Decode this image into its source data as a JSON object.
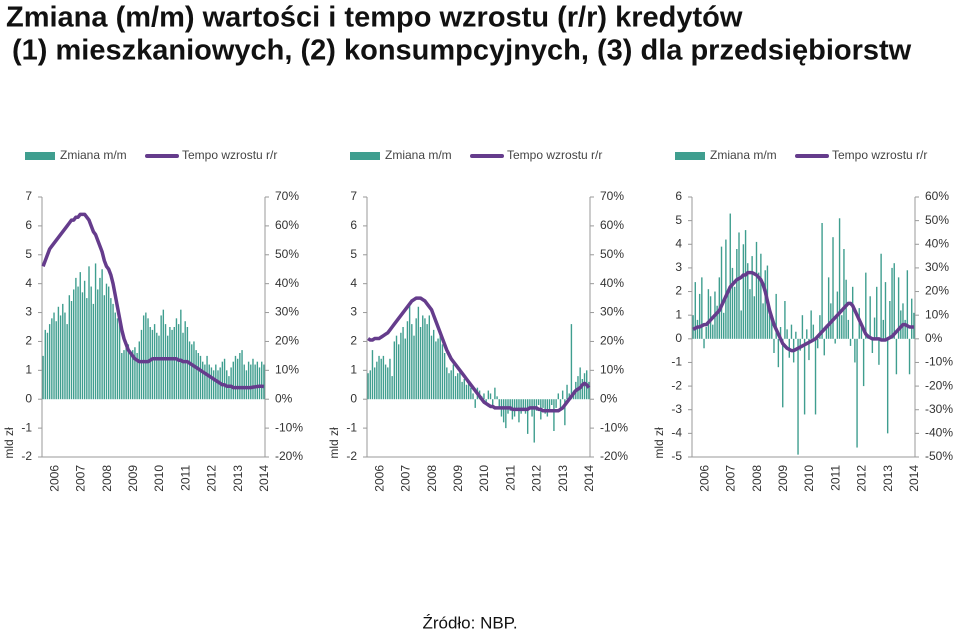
{
  "header": {
    "title": "Zmiana (m/m) wartości i tempo wzrostu (r/r) kredytów",
    "subtitle": "(1) mieszkaniowych, (2) konsumpcyjnych, (3) dla przedsiębiorstw"
  },
  "source": "Źródło: NBP.",
  "chart_data": [
    {
      "type": "combo",
      "ylabel": "mld zł",
      "categories": [
        "2006",
        null,
        null,
        null,
        null,
        null,
        null,
        null,
        null,
        null,
        null,
        null,
        "2007",
        null,
        null,
        null,
        null,
        null,
        null,
        null,
        null,
        null,
        null,
        null,
        "2008",
        null,
        null,
        null,
        null,
        null,
        null,
        null,
        null,
        null,
        null,
        null,
        "2009",
        null,
        null,
        null,
        null,
        null,
        null,
        null,
        null,
        null,
        null,
        null,
        "2010",
        null,
        null,
        null,
        null,
        null,
        null,
        null,
        null,
        null,
        null,
        null,
        "2011",
        null,
        null,
        null,
        null,
        null,
        null,
        null,
        null,
        null,
        null,
        null,
        "2012",
        null,
        null,
        null,
        null,
        null,
        null,
        null,
        null,
        null,
        null,
        null,
        "2013",
        null,
        null,
        null,
        null,
        null,
        null,
        null,
        null,
        null,
        null,
        null,
        "2014",
        null,
        null,
        null,
        null,
        null
      ],
      "ylim": [
        -2,
        7
      ],
      "yticks": [
        -2,
        -1,
        0,
        1,
        2,
        3,
        4,
        5,
        6,
        7
      ],
      "y2lim": [
        -20,
        70
      ],
      "y2ticks": [
        {
          "value": -20,
          "label": "-20%"
        },
        {
          "value": -10,
          "label": "-10%"
        },
        {
          "value": 0,
          "label": "0%"
        },
        {
          "value": 10,
          "label": "10%"
        },
        {
          "value": 20,
          "label": "20%"
        },
        {
          "value": 30,
          "label": "30%"
        },
        {
          "value": 40,
          "label": "40%"
        },
        {
          "value": 50,
          "label": "50%"
        },
        {
          "value": 60,
          "label": "60%"
        },
        {
          "value": 70,
          "label": "70%"
        }
      ],
      "series": [
        {
          "name": "Zmiana m/m",
          "type": "bar",
          "color": "#3f9e8f",
          "values": [
            1.5,
            2.4,
            2.3,
            2.6,
            2.8,
            3.0,
            2.7,
            3.2,
            2.9,
            3.3,
            3.0,
            2.6,
            3.6,
            3.4,
            3.8,
            4.2,
            3.9,
            4.4,
            3.7,
            4.1,
            3.5,
            4.6,
            3.9,
            3.3,
            4.7,
            3.8,
            4.2,
            4.5,
            3.6,
            4.0,
            3.9,
            3.5,
            3.3,
            3.0,
            2.8,
            2.6,
            1.6,
            1.7,
            1.8,
            1.9,
            1.6,
            1.7,
            1.8,
            1.6,
            2.0,
            2.4,
            2.9,
            3.0,
            2.8,
            2.5,
            2.4,
            2.6,
            2.3,
            2.2,
            2.9,
            3.1,
            2.6,
            2.2,
            2.5,
            2.4,
            2.5,
            2.8,
            2.6,
            3.1,
            2.3,
            2.7,
            2.5,
            2.0,
            1.9,
            2.0,
            1.7,
            1.6,
            1.5,
            1.3,
            1.2,
            1.5,
            1.2,
            1.1,
            1.0,
            1.2,
            1.0,
            1.1,
            1.3,
            1.4,
            1.0,
            0.8,
            1.1,
            1.3,
            1.5,
            1.4,
            1.6,
            1.7,
            1.2,
            1.0,
            1.3,
            1.2,
            1.4,
            1.2,
            1.3,
            1.1,
            1.3,
            1.2
          ]
        },
        {
          "name": "Tempo wzrostu r/r",
          "type": "line",
          "axis": "y2",
          "color": "#653c8c",
          "values": [
            46,
            48,
            50,
            52,
            53,
            54,
            55,
            56,
            57,
            58,
            59,
            60,
            61,
            62,
            62,
            63,
            63,
            64,
            64,
            64,
            63,
            62,
            60,
            58,
            57,
            55,
            53,
            51,
            48,
            46,
            45,
            43,
            40,
            36,
            32,
            28,
            24,
            21,
            19,
            17,
            16,
            15,
            14,
            13.5,
            13,
            13,
            13,
            13,
            13,
            13.5,
            14,
            14,
            14,
            14,
            14,
            14,
            14,
            14,
            14,
            14,
            14,
            14,
            13.5,
            13.5,
            13,
            13,
            13,
            12.5,
            12,
            11.5,
            11,
            10.5,
            10,
            9.5,
            9,
            8.5,
            8,
            7.5,
            7,
            6.5,
            6,
            5.5,
            5,
            5,
            4.5,
            4.5,
            4.5,
            4,
            4,
            4,
            4,
            4,
            4,
            4,
            4,
            4,
            4.2,
            4.3,
            4.4,
            4.5,
            4.5,
            4.4
          ]
        }
      ]
    },
    {
      "type": "combo",
      "ylabel": "mld zł",
      "categories": [
        "2006",
        null,
        null,
        null,
        null,
        null,
        null,
        null,
        null,
        null,
        null,
        null,
        "2007",
        null,
        null,
        null,
        null,
        null,
        null,
        null,
        null,
        null,
        null,
        null,
        "2008",
        null,
        null,
        null,
        null,
        null,
        null,
        null,
        null,
        null,
        null,
        null,
        "2009",
        null,
        null,
        null,
        null,
        null,
        null,
        null,
        null,
        null,
        null,
        null,
        "2010",
        null,
        null,
        null,
        null,
        null,
        null,
        null,
        null,
        null,
        null,
        null,
        "2011",
        null,
        null,
        null,
        null,
        null,
        null,
        null,
        null,
        null,
        null,
        null,
        "2012",
        null,
        null,
        null,
        null,
        null,
        null,
        null,
        null,
        null,
        null,
        null,
        "2013",
        null,
        null,
        null,
        null,
        null,
        null,
        null,
        null,
        null,
        null,
        null,
        "2014",
        null,
        null,
        null,
        null,
        null
      ],
      "ylim": [
        -2,
        7
      ],
      "yticks": [
        -2,
        -1,
        0,
        1,
        2,
        3,
        4,
        5,
        6,
        7
      ],
      "y2lim": [
        -20,
        70
      ],
      "y2ticks": [
        {
          "value": -20,
          "label": "-20%"
        },
        {
          "value": -10,
          "label": "-10%"
        },
        {
          "value": 0,
          "label": "0%"
        },
        {
          "value": 10,
          "label": "10%"
        },
        {
          "value": 20,
          "label": "20%"
        },
        {
          "value": 30,
          "label": "30%"
        },
        {
          "value": 40,
          "label": "40%"
        },
        {
          "value": 50,
          "label": "50%"
        },
        {
          "value": 60,
          "label": "60%"
        },
        {
          "value": 70,
          "label": "70%"
        }
      ],
      "series": [
        {
          "name": "Zmiana m/m",
          "type": "bar",
          "color": "#3f9e8f",
          "values": [
            0.9,
            1.0,
            1.7,
            1.1,
            1.3,
            1.5,
            1.4,
            1.5,
            1.2,
            1.1,
            1.4,
            0.8,
            2.0,
            2.2,
            1.9,
            2.3,
            2.5,
            2.1,
            2.7,
            3.3,
            2.6,
            2.2,
            2.8,
            3.2,
            2.5,
            2.9,
            2.8,
            2.6,
            2.9,
            2.2,
            2.4,
            2.0,
            2.1,
            2.3,
            1.9,
            1.6,
            1.1,
            0.9,
            1.0,
            1.2,
            0.8,
            0.9,
            1.0,
            0.6,
            0.7,
            0.5,
            0.6,
            0.4,
            0.2,
            -0.3,
            0.4,
            0.3,
            0.1,
            0.2,
            -0.1,
            0.3,
            0.2,
            -0.2,
            0.4,
            0.1,
            -0.3,
            -0.6,
            -0.8,
            -1.0,
            -0.5,
            -0.4,
            -0.7,
            -0.6,
            -0.3,
            -0.8,
            -0.5,
            -0.4,
            -0.5,
            -1.2,
            -0.3,
            -0.6,
            -1.5,
            -0.4,
            -0.2,
            -0.7,
            -0.3,
            -0.5,
            -0.6,
            -0.4,
            -0.2,
            -1.1,
            -0.3,
            0.2,
            -0.4,
            0.3,
            -0.9,
            0.5,
            0.2,
            2.6,
            0.3,
            0.6,
            0.8,
            1.1,
            0.7,
            0.9,
            1.0,
            0.6
          ]
        },
        {
          "name": "Tempo wzrostu r/r",
          "type": "line",
          "axis": "y2",
          "color": "#653c8c",
          "values": [
            21,
            20.5,
            20.5,
            21,
            21,
            21,
            21.5,
            22,
            22.5,
            23,
            24,
            25,
            26,
            27,
            28,
            29,
            30,
            31,
            32,
            33,
            34,
            34.5,
            35,
            35,
            35,
            34.5,
            34,
            33,
            32,
            31,
            29,
            27,
            25,
            23,
            21,
            19,
            17,
            15.5,
            14,
            13,
            12,
            11,
            10,
            9,
            8,
            7,
            6,
            5,
            4,
            3,
            2,
            1,
            0,
            -1,
            -1.5,
            -2,
            -2.5,
            -2.5,
            -3,
            -3,
            -3,
            -3,
            -3,
            -3,
            -3,
            -3,
            -3.5,
            -3.5,
            -3.5,
            -3.5,
            -3.5,
            -3.5,
            -3.5,
            -3.5,
            -3,
            -3,
            -3,
            -3,
            -3.5,
            -3.5,
            -4,
            -4,
            -4,
            -4,
            -4,
            -4,
            -4,
            -4,
            -3.5,
            -3,
            -2,
            -1,
            0,
            1,
            2,
            3,
            3.5,
            4,
            5,
            5.5,
            5,
            4
          ]
        }
      ]
    },
    {
      "type": "combo",
      "ylabel": "mld zł",
      "categories": [
        "2006",
        null,
        null,
        null,
        null,
        null,
        null,
        null,
        null,
        null,
        null,
        null,
        "2007",
        null,
        null,
        null,
        null,
        null,
        null,
        null,
        null,
        null,
        null,
        null,
        "2008",
        null,
        null,
        null,
        null,
        null,
        null,
        null,
        null,
        null,
        null,
        null,
        "2009",
        null,
        null,
        null,
        null,
        null,
        null,
        null,
        null,
        null,
        null,
        null,
        "2010",
        null,
        null,
        null,
        null,
        null,
        null,
        null,
        null,
        null,
        null,
        null,
        "2011",
        null,
        null,
        null,
        null,
        null,
        null,
        null,
        null,
        null,
        null,
        null,
        "2012",
        null,
        null,
        null,
        null,
        null,
        null,
        null,
        null,
        null,
        null,
        null,
        "2013",
        null,
        null,
        null,
        null,
        null,
        null,
        null,
        null,
        null,
        null,
        null,
        "2014",
        null,
        null,
        null,
        null,
        null
      ],
      "ylim": [
        -5,
        6
      ],
      "yticks": [
        -5,
        -4,
        -3,
        -2,
        -1,
        0,
        1,
        2,
        3,
        4,
        5,
        6
      ],
      "y2lim": [
        -50,
        60
      ],
      "y2ticks": [
        {
          "value": -50,
          "label": "-50%"
        },
        {
          "value": -40,
          "label": "-40%"
        },
        {
          "value": -30,
          "label": "-30%"
        },
        {
          "value": -20,
          "label": "-20%"
        },
        {
          "value": -10,
          "label": "-10%"
        },
        {
          "value": 0,
          "label": "0%"
        },
        {
          "value": 10,
          "label": "10%"
        },
        {
          "value": 20,
          "label": "20%"
        },
        {
          "value": 30,
          "label": "30%"
        },
        {
          "value": 40,
          "label": "40%"
        },
        {
          "value": 50,
          "label": "50%"
        },
        {
          "value": 60,
          "label": "60%"
        }
      ],
      "series": [
        {
          "name": "Zmiana m/m",
          "type": "bar",
          "color": "#3f9e8f",
          "values": [
            1.0,
            2.4,
            0.8,
            1.9,
            2.6,
            -0.4,
            0.5,
            2.1,
            1.8,
            0.6,
            2.0,
            1.4,
            2.6,
            3.9,
            1.1,
            4.2,
            2.0,
            5.3,
            3.0,
            2.2,
            3.8,
            4.5,
            1.2,
            4.0,
            4.6,
            3.2,
            2.1,
            3.5,
            1.8,
            4.1,
            2.8,
            3.6,
            1.5,
            2.9,
            3.1,
            1.0,
            0.8,
            -0.6,
            1.9,
            -1.2,
            0.5,
            -2.9,
            1.6,
            0.4,
            -0.8,
            0.6,
            -1.0,
            0.3,
            -4.9,
            -0.5,
            1.0,
            -3.2,
            0.4,
            -0.9,
            1.2,
            0.6,
            -3.2,
            -0.4,
            1.0,
            4.9,
            -0.7,
            0.6,
            2.6,
            1.5,
            4.3,
            -0.2,
            2.0,
            5.1,
            1.0,
            3.8,
            2.5,
            0.8,
            -0.3,
            2.2,
            -1.0,
            -4.6,
            1.3,
            0.5,
            -2.0,
            2.8,
            0.2,
            1.8,
            -0.6,
            0.9,
            2.2,
            -1.1,
            3.6,
            0.8,
            2.4,
            -4.0,
            1.6,
            3.0,
            3.2,
            -1.5,
            2.6,
            1.2,
            1.5,
            0.8,
            2.9,
            -1.5,
            1.7,
            1.1
          ]
        },
        {
          "name": "Tempo wzrostu r/r",
          "type": "line",
          "axis": "y2",
          "color": "#653c8c",
          "values": [
            4,
            4.5,
            5,
            5,
            5.5,
            6,
            6,
            7,
            8,
            9,
            10,
            11,
            12,
            14,
            16,
            18,
            20,
            22,
            23,
            24,
            25,
            25.5,
            26,
            27,
            27,
            28,
            28,
            28,
            27.5,
            27,
            26,
            25,
            23,
            20,
            16,
            12,
            9,
            6,
            4,
            2,
            0,
            -2,
            -3,
            -4,
            -4.5,
            -5,
            -5,
            -4.5,
            -4,
            -3.5,
            -3,
            -2.5,
            -2,
            -1.5,
            -1,
            -0.5,
            0,
            1,
            2,
            3,
            4,
            5,
            6,
            7,
            8,
            9,
            10,
            11,
            12,
            13,
            14,
            15,
            15,
            14,
            12,
            10,
            8,
            6,
            4,
            2,
            1,
            0.5,
            0,
            0,
            0,
            0,
            -0.5,
            -0.5,
            -0.5,
            0,
            0.5,
            1,
            2,
            3,
            4,
            5,
            6,
            6,
            5.5,
            5,
            5,
            5
          ]
        }
      ]
    }
  ]
}
